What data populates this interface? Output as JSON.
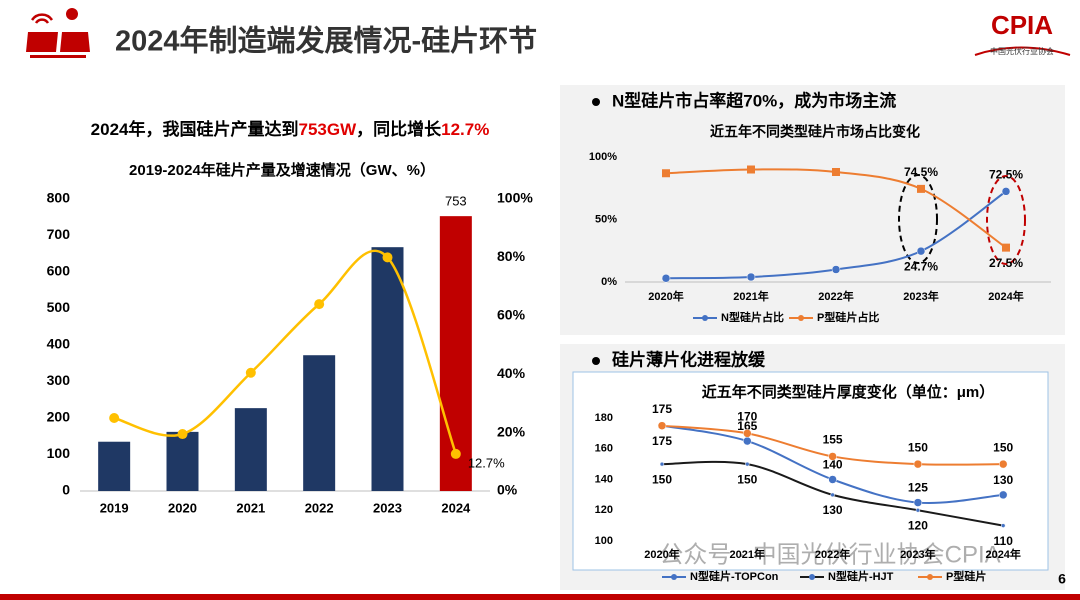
{
  "header": {
    "title": "2024年制造端发展情况-硅片环节",
    "logo": "CPIA",
    "logo_subtitle": "中国光伏行业协会"
  },
  "headline": [
    "2024年，我国硅片产量达到",
    "753GW",
    "，同比增长",
    "12.7%"
  ],
  "sections": [
    "N型硅片市占率超70%，成为市场主流",
    "硅片薄片化进程放缓"
  ],
  "watermark": "公众号 · 中国光伏行业协会CPIA",
  "page_number": "6",
  "chart_data": [
    {
      "type": "combo",
      "title": "2019-2024年硅片产量及增速情况（GW、%）",
      "categories": [
        "2019",
        "2020",
        "2021",
        "2022",
        "2023",
        "2024"
      ],
      "series": [
        {
          "type": "bar",
          "values": [
            135,
            162,
            227,
            372,
            668,
            753
          ],
          "colors": [
            "#1f3864",
            "#1f3864",
            "#1f3864",
            "#1f3864",
            "#1f3864",
            "#c00000"
          ]
        },
        {
          "type": "line",
          "axis": "y2",
          "color": "#ffc000",
          "values": [
            25,
            19.5,
            40.5,
            64,
            80,
            12.7
          ],
          "value_labels": [
            null,
            null,
            null,
            null,
            null,
            "12.7%"
          ]
        }
      ],
      "ylim": [
        0,
        800
      ],
      "yticks": [
        0,
        100,
        200,
        300,
        400,
        500,
        600,
        700,
        800
      ],
      "y2lim": [
        0,
        100
      ],
      "y2ticks": [
        {
          "value": 0,
          "label": "0%"
        },
        {
          "value": 20,
          "label": "20%"
        },
        {
          "value": 40,
          "label": "40%"
        },
        {
          "value": 60,
          "label": "60%"
        },
        {
          "value": 80,
          "label": "80%"
        },
        {
          "value": 100,
          "label": "100%"
        }
      ]
    },
    {
      "type": "line",
      "title": "近五年不同类型硅片市场占比变化",
      "categories": [
        "2020年",
        "2021年",
        "2022年",
        "2023年",
        "2024年"
      ],
      "series": [
        {
          "name": "N型硅片占比",
          "color": "#4472c4",
          "marker": "circle",
          "values": [
            3,
            4,
            10,
            24.7,
            72.5
          ],
          "value_labels": [
            null,
            null,
            null,
            "24.7%",
            "72.5%"
          ]
        },
        {
          "name": "P型硅片占比",
          "color": "#ed7d31",
          "marker": "square",
          "values": [
            87,
            90,
            88,
            74.5,
            27.5
          ],
          "value_labels": [
            null,
            null,
            null,
            "74.5%",
            "27.5%"
          ]
        }
      ],
      "ylim": [
        0,
        100
      ],
      "yticks": [
        {
          "value": 0,
          "label": "0%"
        },
        {
          "value": 50,
          "label": "50%"
        },
        {
          "value": 100,
          "label": "100%"
        }
      ]
    },
    {
      "type": "line",
      "title": "近五年不同类型硅片厚度变化（单位：μm）",
      "categories": [
        "2020年",
        "2021年",
        "2022年",
        "2023年",
        "2024年"
      ],
      "series": [
        {
          "name": "N型硅片-TOPCon",
          "color": "#4472c4",
          "values": [
            175,
            165,
            140,
            125,
            130
          ]
        },
        {
          "name": "N型硅片-HJT",
          "color": "#1a1a1a",
          "values": [
            150,
            150,
            130,
            120,
            110
          ]
        },
        {
          "name": "P型硅片",
          "color": "#ed7d31",
          "values": [
            175,
            170,
            155,
            150,
            150
          ]
        }
      ],
      "ylim": [
        100,
        180
      ],
      "yticks": [
        100,
        120,
        140,
        160,
        180
      ]
    }
  ]
}
